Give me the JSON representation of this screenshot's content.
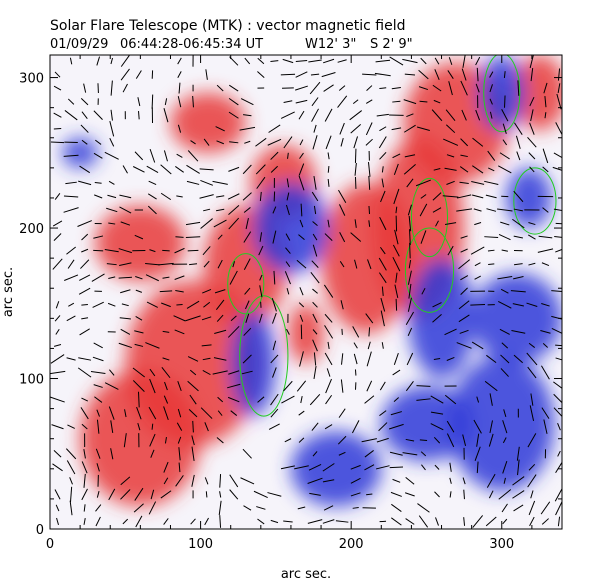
{
  "chart_data": {
    "type": "heatmap",
    "title": "Solar Flare Telescope (MTK) : vector magnetic field",
    "subtitle_date": "01/09/29",
    "subtitle_time": "06:44:28-06:45:34 UT",
    "subtitle_lon": "W12' 3\"",
    "subtitle_lat": "S 2' 9\"",
    "xlabel": "arc sec.",
    "ylabel": "arc sec.",
    "xlim": [
      0,
      340
    ],
    "ylim": [
      0,
      315
    ],
    "xticks": [
      0,
      100,
      200,
      300
    ],
    "yticks": [
      0,
      100,
      200,
      300
    ],
    "grid": false,
    "colors": {
      "positive": "#e8383a",
      "negative": "#2e3ad8",
      "contour": "#22cc22",
      "vector": "#000000"
    },
    "positive_regions": [
      {
        "x": 130,
        "y": 175,
        "rx": 28,
        "ry": 40
      },
      {
        "x": 95,
        "y": 110,
        "rx": 45,
        "ry": 55
      },
      {
        "x": 60,
        "y": 60,
        "rx": 40,
        "ry": 45
      },
      {
        "x": 245,
        "y": 200,
        "rx": 30,
        "ry": 60
      },
      {
        "x": 210,
        "y": 180,
        "rx": 30,
        "ry": 50
      },
      {
        "x": 270,
        "y": 270,
        "rx": 35,
        "ry": 40
      },
      {
        "x": 325,
        "y": 290,
        "rx": 18,
        "ry": 25
      },
      {
        "x": 155,
        "y": 230,
        "rx": 22,
        "ry": 25
      },
      {
        "x": 60,
        "y": 190,
        "rx": 30,
        "ry": 25
      },
      {
        "x": 105,
        "y": 270,
        "rx": 25,
        "ry": 20
      },
      {
        "x": 170,
        "y": 130,
        "rx": 12,
        "ry": 20
      }
    ],
    "negative_regions": [
      {
        "x": 135,
        "y": 110,
        "rx": 15,
        "ry": 35
      },
      {
        "x": 160,
        "y": 200,
        "rx": 25,
        "ry": 30
      },
      {
        "x": 260,
        "y": 140,
        "rx": 22,
        "ry": 40
      },
      {
        "x": 300,
        "y": 290,
        "rx": 15,
        "ry": 25
      },
      {
        "x": 318,
        "y": 220,
        "rx": 15,
        "ry": 20
      },
      {
        "x": 190,
        "y": 40,
        "rx": 30,
        "ry": 25
      },
      {
        "x": 300,
        "y": 70,
        "rx": 35,
        "ry": 45
      },
      {
        "x": 250,
        "y": 70,
        "rx": 30,
        "ry": 25
      },
      {
        "x": 310,
        "y": 140,
        "rx": 30,
        "ry": 30
      },
      {
        "x": 20,
        "y": 250,
        "rx": 12,
        "ry": 10
      }
    ],
    "contours": [
      {
        "x": 130,
        "y": 163,
        "rx": 12,
        "ry": 20
      },
      {
        "x": 142,
        "y": 115,
        "rx": 16,
        "ry": 40
      },
      {
        "x": 252,
        "y": 207,
        "rx": 12,
        "ry": 26
      },
      {
        "x": 252,
        "y": 172,
        "rx": 16,
        "ry": 28
      },
      {
        "x": 300,
        "y": 290,
        "rx": 12,
        "ry": 26
      },
      {
        "x": 322,
        "y": 218,
        "rx": 14,
        "ry": 22
      }
    ]
  }
}
